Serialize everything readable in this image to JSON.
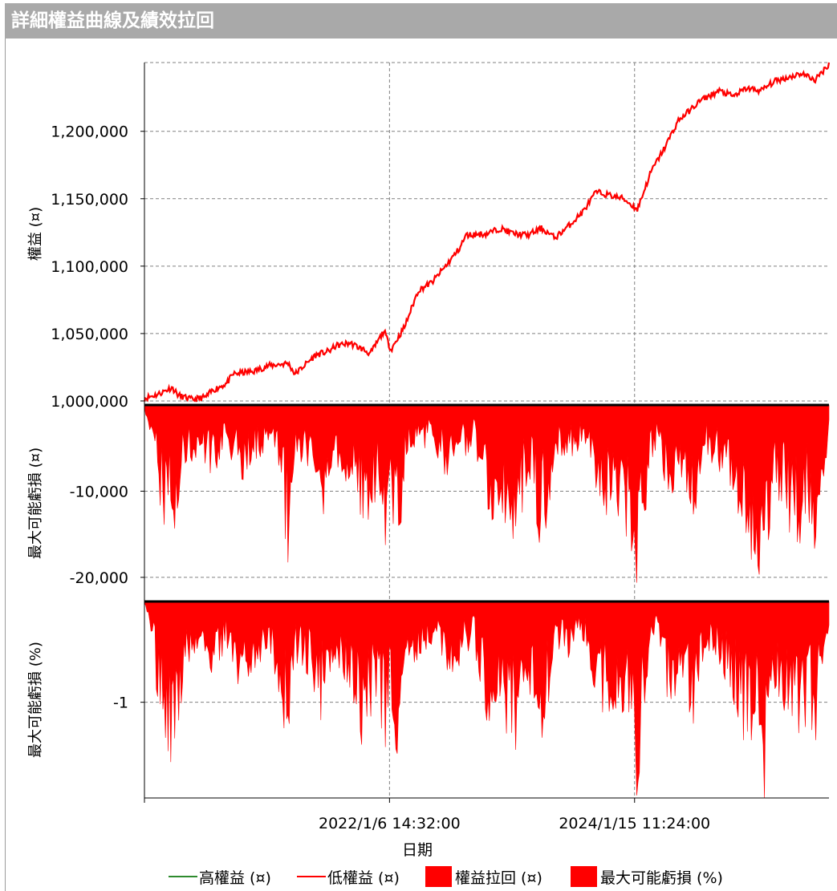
{
  "window": {
    "title": "詳細權益曲線及績效拉回"
  },
  "colors": {
    "high_equity": "#2e8b2e",
    "low_equity": "#ff0000",
    "drawdown": "#ff0000",
    "grid": "#808080",
    "header_bg": "#a9a9a9"
  },
  "chart_data": [
    {
      "type": "line",
      "panel": "equity",
      "ylabel": "權益 (¤)",
      "ylim": [
        997000,
        1251000
      ],
      "yticks": [
        1000000,
        1050000,
        1100000,
        1150000,
        1200000
      ],
      "ytick_labels": [
        "1,000,000",
        "1,050,000",
        "1,100,000",
        "1,150,000",
        "1,200,000"
      ],
      "grid": true,
      "series": [
        {
          "name": "高權益 (¤)",
          "color": "#2e8b2e",
          "x": [
            0.0,
            0.02,
            0.04,
            0.05,
            0.07,
            0.09,
            0.1,
            0.12,
            0.13,
            0.16,
            0.18,
            0.21,
            0.22,
            0.25,
            0.27,
            0.28,
            0.3,
            0.32,
            0.33,
            0.35,
            0.36,
            0.38,
            0.4,
            0.42,
            0.44,
            0.46,
            0.47,
            0.5,
            0.52,
            0.54,
            0.56,
            0.58,
            0.6,
            0.62,
            0.64,
            0.66,
            0.7,
            0.72,
            0.74,
            0.76,
            0.78,
            0.8,
            0.81,
            0.82,
            0.84,
            0.86,
            0.88,
            0.9,
            0.92,
            0.94,
            0.96,
            0.98,
            1.0
          ],
          "values": [
            1002000,
            1005000,
            1010000,
            1004000,
            1001000,
            1003000,
            1008000,
            1013000,
            1020000,
            1022000,
            1026000,
            1028000,
            1020000,
            1034000,
            1037000,
            1041000,
            1043000,
            1038000,
            1035000,
            1052000,
            1038000,
            1055000,
            1082000,
            1088000,
            1100000,
            1113000,
            1123000,
            1124000,
            1128000,
            1124000,
            1123000,
            1128000,
            1121000,
            1130000,
            1140000,
            1155000,
            1150000,
            1142000,
            1170000,
            1188000,
            1208000,
            1217000,
            1222000,
            1225000,
            1230000,
            1226000,
            1232000,
            1230000,
            1237000,
            1240000,
            1243000,
            1238000,
            1250000
          ]
        },
        {
          "name": "低權益 (¤)",
          "color": "#ff0000",
          "x": [
            0.0,
            0.02,
            0.04,
            0.05,
            0.07,
            0.09,
            0.1,
            0.12,
            0.13,
            0.16,
            0.18,
            0.21,
            0.22,
            0.25,
            0.27,
            0.28,
            0.3,
            0.32,
            0.33,
            0.35,
            0.36,
            0.38,
            0.4,
            0.42,
            0.44,
            0.46,
            0.47,
            0.5,
            0.52,
            0.54,
            0.56,
            0.58,
            0.6,
            0.62,
            0.64,
            0.66,
            0.7,
            0.72,
            0.74,
            0.76,
            0.78,
            0.8,
            0.81,
            0.82,
            0.84,
            0.86,
            0.88,
            0.9,
            0.92,
            0.94,
            0.96,
            0.98,
            1.0
          ],
          "values": [
            1002000,
            1005000,
            1010000,
            1004000,
            1001000,
            1003000,
            1008000,
            1013000,
            1020000,
            1022000,
            1026000,
            1028000,
            1020000,
            1034000,
            1037000,
            1041000,
            1043000,
            1038000,
            1035000,
            1052000,
            1038000,
            1055000,
            1082000,
            1088000,
            1100000,
            1113000,
            1123000,
            1124000,
            1128000,
            1124000,
            1123000,
            1128000,
            1121000,
            1130000,
            1140000,
            1155000,
            1150000,
            1142000,
            1170000,
            1188000,
            1208000,
            1217000,
            1222000,
            1225000,
            1230000,
            1226000,
            1232000,
            1230000,
            1237000,
            1240000,
            1243000,
            1238000,
            1250000
          ]
        }
      ]
    },
    {
      "type": "area",
      "panel": "drawdown_abs",
      "ylabel": "最大可能虧損 (¤)",
      "ylim": [
        -22800,
        0
      ],
      "yticks": [
        -10000,
        -20000
      ],
      "ytick_labels": [
        "-10,000",
        "-20,000"
      ],
      "grid": true,
      "series": [
        {
          "name": "權益拉回 (¤)",
          "color": "#ff0000",
          "x": [
            0.0,
            0.01,
            0.02,
            0.03,
            0.04,
            0.05,
            0.06,
            0.08,
            0.1,
            0.12,
            0.14,
            0.16,
            0.18,
            0.2,
            0.21,
            0.22,
            0.24,
            0.26,
            0.28,
            0.3,
            0.32,
            0.34,
            0.35,
            0.36,
            0.37,
            0.38,
            0.4,
            0.42,
            0.44,
            0.46,
            0.48,
            0.5,
            0.52,
            0.54,
            0.56,
            0.57,
            0.58,
            0.6,
            0.62,
            0.64,
            0.66,
            0.68,
            0.7,
            0.72,
            0.74,
            0.75,
            0.76,
            0.78,
            0.8,
            0.82,
            0.84,
            0.86,
            0.88,
            0.9,
            0.905,
            0.91,
            0.92,
            0.94,
            0.96,
            0.97,
            0.98,
            1.0
          ],
          "values": [
            -500,
            -3000,
            -9000,
            -13000,
            -14000,
            -11000,
            -6000,
            -5000,
            -7000,
            -4000,
            -8000,
            -6000,
            -4000,
            -9000,
            -16000,
            -5000,
            -7000,
            -11000,
            -6000,
            -8000,
            -13000,
            -9000,
            -15000,
            -10000,
            -19000,
            -6000,
            -5000,
            -4000,
            -7000,
            -6000,
            -4000,
            -11000,
            -13000,
            -15000,
            -8000,
            -11000,
            -16000,
            -5000,
            -6000,
            -4000,
            -9000,
            -13000,
            -11000,
            -20000,
            -6000,
            -4000,
            -11000,
            -9000,
            -13000,
            -5000,
            -7000,
            -11000,
            -15000,
            -17000,
            -22000,
            -14000,
            -9000,
            -12000,
            -15000,
            -11000,
            -16000,
            -3000
          ]
        }
      ]
    },
    {
      "type": "area",
      "panel": "drawdown_pct",
      "ylabel": "最大可能虧損 (%)",
      "ylim": [
        -1.95,
        0
      ],
      "yticks": [
        -1
      ],
      "ytick_labels": [
        "-1"
      ],
      "grid": true,
      "x_tick_labels": [
        "2022/1/6 14:32:00",
        "2024/1/15 11:24:00"
      ],
      "xlabel": "日期",
      "series": [
        {
          "name": "最大可能虧損 (%)",
          "color": "#ff0000",
          "x": [
            0.0,
            0.01,
            0.02,
            0.03,
            0.04,
            0.05,
            0.06,
            0.08,
            0.1,
            0.12,
            0.14,
            0.16,
            0.18,
            0.2,
            0.21,
            0.22,
            0.24,
            0.26,
            0.28,
            0.3,
            0.32,
            0.34,
            0.35,
            0.36,
            0.37,
            0.38,
            0.4,
            0.42,
            0.44,
            0.46,
            0.48,
            0.5,
            0.52,
            0.54,
            0.56,
            0.57,
            0.58,
            0.6,
            0.62,
            0.64,
            0.66,
            0.68,
            0.7,
            0.72,
            0.74,
            0.75,
            0.76,
            0.78,
            0.8,
            0.82,
            0.84,
            0.86,
            0.88,
            0.9,
            0.905,
            0.91,
            0.92,
            0.94,
            0.96,
            0.97,
            0.98,
            1.0
          ],
          "values": [
            -0.05,
            -0.3,
            -0.9,
            -1.3,
            -1.4,
            -1.1,
            -0.6,
            -0.5,
            -0.7,
            -0.4,
            -0.8,
            -0.6,
            -0.4,
            -0.9,
            -1.55,
            -0.5,
            -0.7,
            -1.05,
            -0.6,
            -0.75,
            -1.3,
            -0.85,
            -1.4,
            -0.95,
            -1.8,
            -0.55,
            -0.5,
            -0.35,
            -0.65,
            -0.55,
            -0.35,
            -1.0,
            -1.2,
            -1.35,
            -0.7,
            -0.95,
            -1.4,
            -0.45,
            -0.5,
            -0.35,
            -0.8,
            -1.1,
            -0.95,
            -1.65,
            -0.5,
            -0.35,
            -0.9,
            -0.75,
            -1.1,
            -0.4,
            -0.55,
            -0.9,
            -1.25,
            -1.4,
            -1.9,
            -1.2,
            -0.75,
            -1.0,
            -1.25,
            -0.9,
            -1.3,
            -0.25
          ]
        }
      ]
    }
  ],
  "legend": {
    "items": [
      {
        "label": "高權益 (¤)",
        "style": "line",
        "color": "#2e8b2e"
      },
      {
        "label": "低權益 (¤)",
        "style": "line",
        "color": "#ff0000"
      },
      {
        "label": "權益拉回 (¤)",
        "style": "box",
        "color": "#ff0000"
      },
      {
        "label": "最大可能虧損 (%)",
        "style": "box",
        "color": "#ff0000"
      }
    ]
  }
}
